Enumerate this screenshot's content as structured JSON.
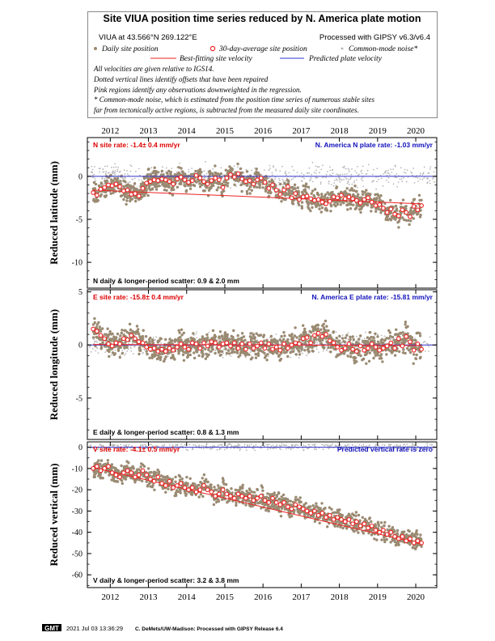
{
  "header": {
    "title": "Site VIUA position time series reduced by N. America plate motion",
    "site_location": "VIUA at 43.566°N 269.122°E",
    "processed_with": "Processed with GIPSY v6.3/v6.4",
    "legend": {
      "daily": "Daily site position",
      "avg30": "30-day-average site position",
      "common_mode": "Common-mode noise*",
      "best_fit": "Best-fitting site velocity",
      "predicted": "Predicted plate velocity"
    },
    "notes": [
      "All velocities are given relative to IGS14.",
      "Dotted vertical lines identify offsets that have been repaired",
      "Pink regions identify any observations downweighted in the regression.",
      "* Common-mode noise, which is estimated from the position time series of numerous stable sites",
      "far from tectonically active regions, is subtracted from the measured daily site coordinates."
    ]
  },
  "footer": {
    "logo": "GMT",
    "timestamp": "2021 Jul 03 13:36:29",
    "credit": "C. DeMets/UW-Madison: Processed with GIPSY Release 6.4"
  },
  "colors": {
    "daily": "#9a8a72",
    "common_mode": "#b8b8b8",
    "best_fit": "#ee2222",
    "avg_fill": "#ffffff",
    "avg_stroke": "#ee2222",
    "predicted": "#3333cc",
    "site_rate_text": "#dd0000",
    "plate_rate_text": "#1111bb"
  },
  "chart_data": [
    {
      "type": "scatter",
      "component": "N",
      "ylabel": "Reduced latitude (mm)",
      "ylim": [
        -13,
        4.5
      ],
      "yticks": [
        0,
        -5,
        -10
      ],
      "xlim": [
        2011.4,
        2020.55
      ],
      "xticks": [
        2012,
        2013,
        2014,
        2015,
        2016,
        2017,
        2018,
        2019,
        2020
      ],
      "show_top_xlabels": true,
      "show_bottom_xlabels": false,
      "site_rate_label": "N site rate:  -1.4± 0.4 mm/yr",
      "plate_rate_label": "N. America N plate rate: -1.03 mm/yr",
      "scatter_label": "N daily & longer-period scatter:   0.9 &   2.0 mm",
      "best_fit": {
        "x": [
          2011.55,
          2020.15
        ],
        "y": [
          -1.6,
          -3.2
        ]
      },
      "predicted_y": 0,
      "avg30": {
        "x": [
          2011.55,
          2011.65,
          2011.75,
          2011.85,
          2011.95,
          2012.05,
          2012.15,
          2012.25,
          2012.35,
          2012.45,
          2012.55,
          2012.65,
          2012.75,
          2012.85,
          2012.95,
          2013.05,
          2013.15,
          2013.25,
          2013.35,
          2013.45,
          2013.55,
          2013.65,
          2013.75,
          2013.85,
          2013.95,
          2014.05,
          2014.15,
          2014.25,
          2014.35,
          2014.45,
          2014.55,
          2014.65,
          2014.75,
          2014.85,
          2014.95,
          2015.05,
          2015.15,
          2015.25,
          2015.35,
          2015.45,
          2015.55,
          2015.65,
          2015.75,
          2015.85,
          2015.95,
          2016.05,
          2016.15,
          2016.25,
          2016.35,
          2016.45,
          2016.55,
          2016.65,
          2016.75,
          2016.85,
          2016.95,
          2017.05,
          2017.15,
          2017.25,
          2017.35,
          2017.45,
          2017.55,
          2017.65,
          2017.75,
          2017.85,
          2017.95,
          2018.05,
          2018.15,
          2018.25,
          2018.35,
          2018.45,
          2018.55,
          2018.65,
          2018.75,
          2018.85,
          2018.95,
          2019.05,
          2019.15,
          2019.25,
          2019.35,
          2019.45,
          2019.55,
          2019.65,
          2019.75,
          2019.85,
          2019.95,
          2020.05,
          2020.15
        ],
        "y": [
          -1.9,
          -2.2,
          -1.5,
          -1.3,
          -1.0,
          -1.1,
          -0.9,
          -1.2,
          -1.7,
          -1.6,
          -2.1,
          -2.0,
          -2.3,
          -1.4,
          -0.8,
          -0.6,
          -0.4,
          -0.5,
          -0.3,
          -0.4,
          -0.6,
          -0.9,
          -0.3,
          -0.1,
          -0.4,
          -0.7,
          -0.5,
          0.1,
          -0.2,
          -0.6,
          -0.9,
          -0.5,
          -0.2,
          -0.4,
          -1.3,
          -0.2,
          0.2,
          -0.1,
          0.3,
          -0.3,
          -0.6,
          -0.5,
          -0.9,
          -0.4,
          -0.2,
          -0.7,
          -1.4,
          -1.0,
          -1.6,
          -2.1,
          -1.6,
          -1.2,
          -2.5,
          -2.0,
          -2.7,
          -2.4,
          -2.3,
          -2.6,
          -2.8,
          -2.7,
          -3.0,
          -3.2,
          -2.9,
          -2.4,
          -2.5,
          -2.2,
          -2.6,
          -2.4,
          -2.6,
          -2.8,
          -3.1,
          -2.7,
          -2.5,
          -3.0,
          -3.4,
          -3.3,
          -3.7,
          -4.2,
          -3.8,
          -4.4,
          -4.6,
          -3.9,
          -4.2,
          -4.7,
          -3.5,
          -3.9,
          -3.4
        ]
      }
    },
    {
      "type": "scatter",
      "component": "E",
      "ylabel": "Reduced longitude (mm)",
      "ylim": [
        -8.9,
        5.2
      ],
      "yticks": [
        5,
        0,
        -5
      ],
      "xlim": [
        2011.4,
        2020.55
      ],
      "xticks": [
        2012,
        2013,
        2014,
        2015,
        2016,
        2017,
        2018,
        2019,
        2020
      ],
      "show_top_xlabels": false,
      "show_bottom_xlabels": false,
      "site_rate_label": "E site rate:  -15.8± 0.4 mm/yr",
      "plate_rate_label": "N. America E plate rate: -15.81 mm/yr",
      "scatter_label": "E daily & longer-period scatter:   0.8 &   1.3 mm",
      "best_fit": {
        "x": [
          2011.55,
          2020.15
        ],
        "y": [
          0.05,
          -0.05
        ]
      },
      "predicted_y": 0,
      "avg30": {
        "x": [
          2011.55,
          2011.65,
          2011.75,
          2011.85,
          2011.95,
          2012.05,
          2012.15,
          2012.25,
          2012.35,
          2012.45,
          2012.55,
          2012.65,
          2012.75,
          2012.85,
          2012.95,
          2013.05,
          2013.15,
          2013.25,
          2013.35,
          2013.45,
          2013.55,
          2013.65,
          2013.75,
          2013.85,
          2013.95,
          2014.05,
          2014.15,
          2014.25,
          2014.35,
          2014.45,
          2014.55,
          2014.65,
          2014.75,
          2014.85,
          2014.95,
          2015.05,
          2015.15,
          2015.25,
          2015.35,
          2015.45,
          2015.55,
          2015.65,
          2015.75,
          2015.85,
          2015.95,
          2016.05,
          2016.15,
          2016.25,
          2016.35,
          2016.45,
          2016.55,
          2016.65,
          2016.75,
          2016.85,
          2016.95,
          2017.05,
          2017.15,
          2017.25,
          2017.35,
          2017.45,
          2017.55,
          2017.65,
          2017.75,
          2017.85,
          2017.95,
          2018.05,
          2018.15,
          2018.25,
          2018.35,
          2018.45,
          2018.55,
          2018.65,
          2018.75,
          2018.85,
          2018.95,
          2019.05,
          2019.15,
          2019.25,
          2019.35,
          2019.45,
          2019.55,
          2019.65,
          2019.75,
          2019.85,
          2019.95,
          2020.05,
          2020.15
        ],
        "y": [
          1.5,
          1.3,
          0.9,
          0.6,
          0.1,
          -0.1,
          0.2,
          0.1,
          0.6,
          0.5,
          0.9,
          0.6,
          0.3,
          0.2,
          -0.2,
          -0.4,
          -0.3,
          -0.6,
          -0.4,
          -0.6,
          -0.3,
          -0.5,
          -0.2,
          0.1,
          -0.2,
          -0.4,
          0.2,
          0.1,
          -0.3,
          0.2,
          -0.1,
          0.3,
          0.2,
          -0.2,
          0.1,
          0.2,
          -0.1,
          0.2,
          -0.3,
          0.1,
          -0.4,
          0.1,
          -0.3,
          -0.1,
          0.2,
          -0.3,
          0.1,
          -0.4,
          -0.2,
          -0.5,
          0.1,
          -0.3,
          0.0,
          0.2,
          0.1,
          0.6,
          0.7,
          0.2,
          0.9,
          1.1,
          0.8,
          1.0,
          0.4,
          0.2,
          -0.2,
          -0.5,
          -0.3,
          0.1,
          -0.4,
          -0.6,
          -0.1,
          -0.5,
          -0.3,
          0.1,
          -0.2,
          -0.5,
          -0.3,
          -0.1,
          0.2,
          -0.3,
          0.6,
          -0.1,
          0.8,
          0.3,
          -0.5,
          0.1,
          -0.4
        ]
      }
    },
    {
      "type": "scatter",
      "component": "V",
      "ylabel": "Reduced vertical (mm)",
      "ylim": [
        -66,
        2.5
      ],
      "yticks": [
        0,
        -10,
        -20,
        -30,
        -40,
        -50,
        -60
      ],
      "xlim": [
        2011.4,
        2020.55
      ],
      "xticks": [
        2012,
        2013,
        2014,
        2015,
        2016,
        2017,
        2018,
        2019,
        2020
      ],
      "show_top_xlabels": false,
      "show_bottom_xlabels": true,
      "site_rate_label": "V site rate:  -4.1± 0.5 mm/yr",
      "plate_rate_label": "Predicted vertical rate is zero",
      "scatter_label": "V daily & longer-period scatter:   3.2 &   3.8 mm",
      "best_fit": {
        "x": [
          2011.55,
          2020.15
        ],
        "y": [
          -9.5,
          -45.5
        ]
      },
      "predicted_y": 0,
      "avg30": {
        "x": [
          2011.55,
          2011.65,
          2011.75,
          2011.85,
          2011.95,
          2012.05,
          2012.15,
          2012.25,
          2012.35,
          2012.45,
          2012.55,
          2012.65,
          2012.75,
          2012.85,
          2012.95,
          2013.05,
          2013.15,
          2013.25,
          2013.35,
          2013.45,
          2013.55,
          2013.65,
          2013.75,
          2013.85,
          2013.95,
          2014.05,
          2014.15,
          2014.25,
          2014.35,
          2014.45,
          2014.55,
          2014.65,
          2014.75,
          2014.85,
          2014.95,
          2015.05,
          2015.15,
          2015.25,
          2015.35,
          2015.45,
          2015.55,
          2015.65,
          2015.75,
          2015.85,
          2015.95,
          2016.05,
          2016.15,
          2016.25,
          2016.35,
          2016.45,
          2016.55,
          2016.65,
          2016.75,
          2016.85,
          2016.95,
          2017.05,
          2017.15,
          2017.25,
          2017.35,
          2017.45,
          2017.55,
          2017.65,
          2017.75,
          2017.85,
          2017.95,
          2018.05,
          2018.15,
          2018.25,
          2018.35,
          2018.45,
          2018.55,
          2018.65,
          2018.75,
          2018.85,
          2018.95,
          2019.05,
          2019.15,
          2019.25,
          2019.35,
          2019.45,
          2019.55,
          2019.65,
          2019.75,
          2019.85,
          2019.95,
          2020.05,
          2020.15
        ],
        "y": [
          -10,
          -9,
          -11,
          -10,
          -9,
          -12,
          -13,
          -14,
          -12,
          -11,
          -12,
          -14,
          -13,
          -11,
          -13,
          -15,
          -16,
          -14,
          -17,
          -18,
          -16,
          -19,
          -18,
          -17,
          -19,
          -20,
          -19,
          -21,
          -20,
          -18,
          -20,
          -21,
          -23,
          -22,
          -20,
          -22,
          -23,
          -24,
          -22,
          -23,
          -24,
          -23,
          -25,
          -24,
          -23,
          -25,
          -26,
          -24,
          -26,
          -27,
          -26,
          -28,
          -29,
          -27,
          -28,
          -29,
          -30,
          -31,
          -30,
          -32,
          -31,
          -33,
          -32,
          -34,
          -33,
          -34,
          -35,
          -34,
          -36,
          -35,
          -37,
          -36,
          -38,
          -37,
          -39,
          -40,
          -39,
          -41,
          -40,
          -42,
          -43,
          -42,
          -44,
          -43,
          -45,
          -44,
          -45
        ]
      }
    }
  ]
}
